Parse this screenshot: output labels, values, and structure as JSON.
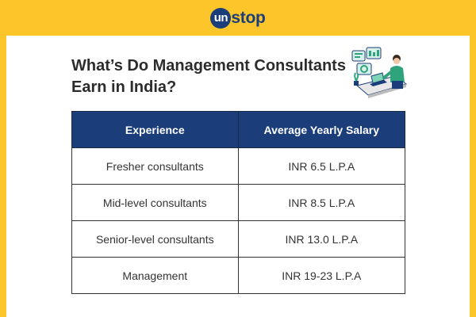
{
  "brand": {
    "logo_circle": "un",
    "logo_rest": "stop",
    "accent_color": "#fcc52a",
    "primary_color": "#1b3e7a"
  },
  "title_line1": "What’s Do Management Consultants",
  "title_line2": "Earn in India?",
  "illustration_icon": "consultant-at-desk-icon",
  "table": {
    "headers": [
      "Experience",
      "Average Yearly Salary"
    ],
    "rows": [
      [
        "Fresher consultants",
        "INR 6.5 L.P.A"
      ],
      [
        "Mid-level consultants",
        "INR 8.5 L.P.A"
      ],
      [
        "Senior-level consultants",
        "INR 13.0 L.P.A"
      ],
      [
        "Management",
        "INR 19-23 L.P.A"
      ]
    ]
  }
}
